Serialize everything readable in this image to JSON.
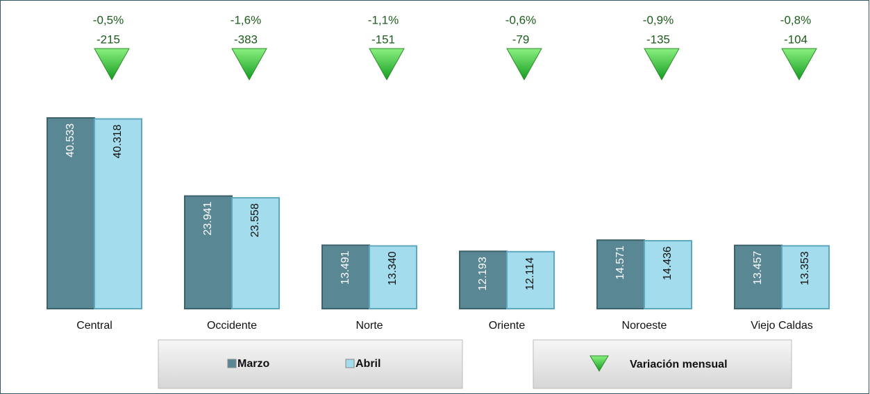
{
  "chart_data": {
    "type": "bar",
    "categories": [
      "Central",
      "Occidente",
      "Norte",
      "Oriente",
      "Noroeste",
      "Viejo Caldas"
    ],
    "series": [
      {
        "name": "Marzo",
        "color": "#5a8794",
        "values": [
          40533,
          23941,
          13491,
          12193,
          14571,
          13457
        ],
        "value_labels": [
          "40.533",
          "23.941",
          "13.491",
          "12.193",
          "14.571",
          "13.457"
        ]
      },
      {
        "name": "Abril",
        "color": "#a3dcec",
        "values": [
          40318,
          23558,
          13340,
          12114,
          14436,
          13353
        ],
        "value_labels": [
          "40.318",
          "23.558",
          "13.340",
          "12.114",
          "14.436",
          "13.353"
        ]
      }
    ],
    "variation": {
      "name": "Variación mensual",
      "color": "#2fbf3a",
      "percent": [
        -0.5,
        -1.6,
        -1.1,
        -0.6,
        -0.9,
        -0.8
      ],
      "percent_labels": [
        "-0,5%",
        "-1,6%",
        "-1,1%",
        "-0,6%",
        "-0,9%",
        "-0,8%"
      ],
      "values": [
        -215,
        -383,
        -151,
        -79,
        -135,
        -104
      ]
    }
  }
}
